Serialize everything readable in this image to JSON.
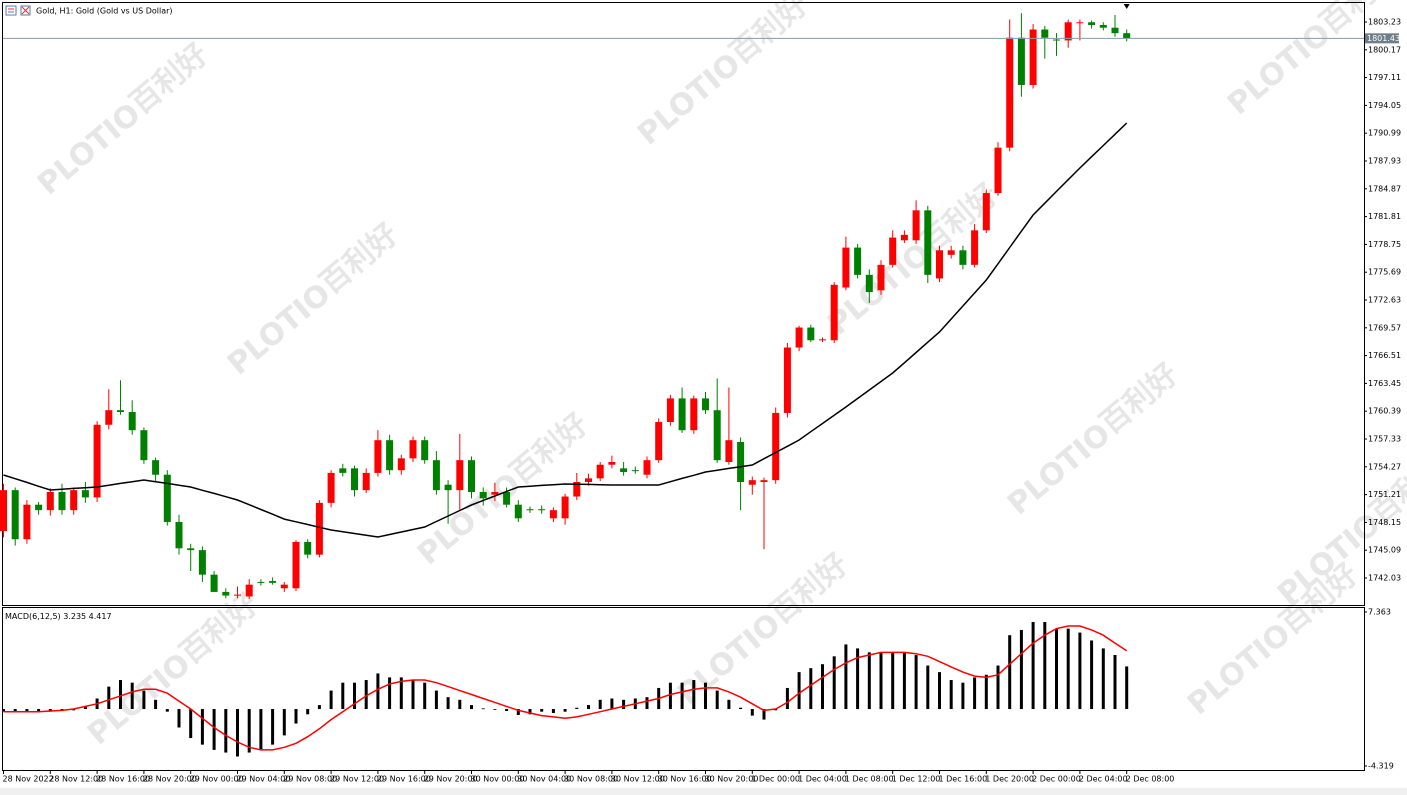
{
  "chart_data": [
    {
      "type": "candlestick",
      "title": "Gold, H1:  Gold (Gold vs US Dollar)",
      "watermark": [
        "PLOTIO",
        "百利好"
      ],
      "up_color": "#ff0000",
      "down_color": "#008000",
      "categories": [
        "28 Nov 2022",
        null,
        null,
        null,
        "28 Nov 12:00",
        null,
        null,
        null,
        "28 Nov 16:00",
        null,
        null,
        null,
        "28 Nov 20:00",
        null,
        null,
        null,
        "29 Nov 00:00",
        null,
        null,
        null,
        "29 Nov 04:00",
        null,
        null,
        null,
        "29 Nov 08:00",
        null,
        null,
        null,
        "29 Nov 12:00",
        null,
        null,
        null,
        "29 Nov 16:00",
        null,
        null,
        null,
        "29 Nov 20:00",
        null,
        null,
        null,
        "30 Nov 00:00",
        null,
        null,
        null,
        "30 Nov 04:00",
        null,
        null,
        null,
        "30 Nov 08:00",
        null,
        null,
        null,
        "30 Nov 12:00",
        null,
        null,
        null,
        "30 Nov 16:00",
        null,
        null,
        null,
        "30 Nov 20:00",
        null,
        null,
        null,
        "1 Dec 00:00",
        null,
        null,
        null,
        "1 Dec 04:00",
        null,
        null,
        null,
        "1 Dec 08:00",
        null,
        null,
        null,
        "1 Dec 12:00",
        null,
        null,
        null,
        "1 Dec 16:00",
        null,
        null,
        null,
        "1 Dec 20:00",
        null,
        null,
        null,
        "2 Dec 00:00",
        null,
        null,
        null,
        "2 Dec 04:00",
        null,
        null,
        null,
        "2 Dec 08:00"
      ],
      "open": [
        1747.2,
        1751.7,
        1746.3,
        1750.1,
        1749.5,
        1751.5,
        1749.5,
        1751.7,
        1750.9,
        1758.9,
        1760.5,
        1760.3,
        1758.3,
        1755.0,
        1753.4,
        1748.2,
        1745.3,
        1745.1,
        1742.4,
        1740.5,
        1740.1,
        1740.0,
        1741.6,
        1741.7,
        1740.9,
        1740.9,
        1746.0,
        1744.6,
        1750.3,
        1754.1,
        1754.1,
        1751.7,
        1753.6,
        1757.2,
        1753.9,
        1755.2,
        1757.2,
        1755.0,
        1752.3,
        1751.7,
        1755.0,
        1751.5,
        1751.2,
        1751.5,
        1750.1,
        1749.6,
        1749.6,
        1748.6,
        1748.6,
        1751.0,
        1752.6,
        1753.0,
        1754.5,
        1754.1,
        1753.9,
        1753.4,
        1755.0,
        1759.2,
        1761.8,
        1758.3,
        1761.8,
        1760.5,
        1754.8,
        1757.0,
        1752.3,
        1752.6,
        1752.8,
        1760.2,
        1767.4,
        1769.6,
        1768.2,
        1768.2,
        1774.0,
        1778.4,
        1775.4,
        1773.7,
        1776.5,
        1779.2,
        1779.2,
        1782.5,
        1775.0,
        1777.6,
        1778.1,
        1776.5,
        1780.3,
        1784.4,
        1789.4,
        1801.5,
        1796.3,
        1802.4,
        1801.3,
        1801.2,
        1803.1,
        1803.2,
        1802.9,
        1802.6,
        1802.0
      ],
      "high": [
        1752.4,
        1752.0,
        1750.6,
        1750.4,
        1751.9,
        1752.4,
        1752.0,
        1752.6,
        1759.3,
        1762.8,
        1763.8,
        1761.6,
        1758.6,
        1755.3,
        1753.9,
        1749.0,
        1745.8,
        1745.5,
        1742.8,
        1740.9,
        1741.1,
        1741.9,
        1741.9,
        1742.1,
        1741.6,
        1746.2,
        1746.3,
        1750.6,
        1753.9,
        1754.6,
        1754.4,
        1754.1,
        1758.3,
        1757.8,
        1755.6,
        1757.6,
        1757.6,
        1756.0,
        1752.8,
        1757.9,
        1755.4,
        1752.0,
        1752.5,
        1752.0,
        1750.6,
        1749.9,
        1750.0,
        1749.8,
        1751.3,
        1753.6,
        1753.5,
        1754.8,
        1755.5,
        1754.8,
        1754.3,
        1755.4,
        1759.6,
        1762.2,
        1763.0,
        1762.1,
        1762.5,
        1764.0,
        1763.0,
        1757.5,
        1753.2,
        1753.1,
        1760.8,
        1767.9,
        1769.8,
        1769.9,
        1768.5,
        1774.6,
        1779.6,
        1778.8,
        1776.0,
        1777.0,
        1780.3,
        1780.3,
        1783.6,
        1783.0,
        1778.6,
        1778.6,
        1778.6,
        1781.0,
        1784.8,
        1790.0,
        1803.5,
        1804.2,
        1803.0,
        1802.8,
        1802.0,
        1803.5,
        1803.5,
        1803.4,
        1803.2,
        1804.0,
        1802.4
      ],
      "low": [
        1746.5,
        1745.6,
        1745.8,
        1749.0,
        1748.9,
        1749.0,
        1749.0,
        1750.3,
        1750.4,
        1758.4,
        1760.0,
        1757.8,
        1754.6,
        1752.6,
        1747.8,
        1744.6,
        1742.8,
        1741.6,
        1740.5,
        1739.8,
        1739.8,
        1739.7,
        1741.2,
        1741.3,
        1740.5,
        1740.6,
        1744.2,
        1744.3,
        1749.8,
        1753.2,
        1751.0,
        1751.4,
        1753.2,
        1753.4,
        1753.4,
        1754.8,
        1754.6,
        1751.2,
        1748.0,
        1749.5,
        1750.8,
        1750.0,
        1750.5,
        1749.8,
        1748.2,
        1749.2,
        1749.1,
        1748.2,
        1747.9,
        1750.6,
        1752.2,
        1752.7,
        1754.1,
        1753.3,
        1753.5,
        1753.0,
        1754.7,
        1758.8,
        1758.0,
        1757.9,
        1760.1,
        1754.7,
        1754.5,
        1749.5,
        1751.2,
        1745.2,
        1752.4,
        1759.7,
        1767.0,
        1768.0,
        1768.0,
        1767.9,
        1773.7,
        1775.0,
        1772.3,
        1773.2,
        1776.2,
        1778.9,
        1778.8,
        1774.5,
        1774.6,
        1777.2,
        1776.0,
        1776.2,
        1780.0,
        1784.1,
        1789.0,
        1795.0,
        1795.9,
        1799.2,
        1799.5,
        1800.4,
        1801.2,
        1802.5,
        1802.3,
        1801.6,
        1801.1
      ],
      "close": [
        1751.7,
        1746.3,
        1750.1,
        1749.5,
        1751.5,
        1749.5,
        1751.7,
        1750.9,
        1758.9,
        1760.5,
        1760.3,
        1758.3,
        1755.0,
        1753.4,
        1748.2,
        1745.3,
        1745.1,
        1742.4,
        1740.5,
        1740.1,
        1740.2,
        1741.3,
        1741.5,
        1741.5,
        1741.3,
        1746.0,
        1744.6,
        1750.3,
        1753.6,
        1753.6,
        1751.7,
        1753.6,
        1757.2,
        1753.9,
        1755.2,
        1757.2,
        1755.0,
        1751.7,
        1751.7,
        1755.0,
        1751.5,
        1750.8,
        1751.5,
        1750.1,
        1748.6,
        1749.5,
        1749.5,
        1749.5,
        1751.0,
        1752.6,
        1753.0,
        1754.5,
        1754.8,
        1753.7,
        1753.8,
        1755.0,
        1759.2,
        1761.8,
        1758.3,
        1761.8,
        1760.5,
        1755.0,
        1757.2,
        1752.6,
        1752.8,
        1752.8,
        1760.2,
        1767.4,
        1769.6,
        1768.2,
        1768.3,
        1774.3,
        1778.4,
        1775.4,
        1773.5,
        1776.5,
        1779.5,
        1779.8,
        1782.5,
        1775.4,
        1778.1,
        1778.1,
        1776.5,
        1780.3,
        1784.4,
        1789.4,
        1801.5,
        1796.3,
        1802.4,
        1801.5,
        1801.2,
        1803.2,
        1803.2,
        1802.9,
        1802.6,
        1802.0,
        1801.43
      ],
      "ma": {
        "color": "#000000",
        "values": [
          1753.37,
          1752.96,
          1752.55,
          1752.13,
          1751.72,
          1751.8,
          1751.89,
          1751.97,
          1752.05,
          1752.24,
          1752.44,
          1752.63,
          1752.82,
          1752.63,
          1752.44,
          1752.24,
          1752.05,
          1751.69,
          1751.34,
          1750.98,
          1750.62,
          1750.1,
          1749.57,
          1749.05,
          1748.52,
          1748.22,
          1747.92,
          1747.61,
          1747.31,
          1747.12,
          1746.93,
          1746.73,
          1746.54,
          1746.82,
          1747.09,
          1747.37,
          1747.64,
          1748.25,
          1748.86,
          1749.46,
          1750.07,
          1750.57,
          1751.06,
          1751.56,
          1752.05,
          1752.13,
          1752.22,
          1752.3,
          1752.38,
          1752.35,
          1752.33,
          1752.3,
          1752.27,
          1752.27,
          1752.27,
          1752.27,
          1752.27,
          1752.63,
          1752.99,
          1753.34,
          1753.7,
          1753.89,
          1754.09,
          1754.28,
          1754.47,
          1755.16,
          1755.85,
          1756.53,
          1757.22,
          1758.13,
          1759.04,
          1759.94,
          1760.85,
          1761.79,
          1762.72,
          1763.66,
          1764.59,
          1765.72,
          1766.85,
          1767.98,
          1769.11,
          1770.54,
          1771.97,
          1773.4,
          1774.83,
          1776.62,
          1778.41,
          1780.2,
          1781.99,
          1783.28,
          1784.58,
          1785.87,
          1787.16,
          1788.4,
          1789.64,
          1790.87,
          1792.11
        ]
      },
      "last_price": 1801.43,
      "ylim": [
        1738.95,
        1805.32
      ],
      "yticks": [
        1803.23,
        1800.17,
        1797.11,
        1794.05,
        1790.99,
        1787.93,
        1784.87,
        1781.81,
        1778.75,
        1775.69,
        1772.63,
        1769.57,
        1766.51,
        1763.45,
        1760.39,
        1757.33,
        1754.27,
        1751.21,
        1748.15,
        1745.09,
        1742.03
      ],
      "grid": false
    },
    {
      "type": "macd",
      "title": "MACD(6,12,5)",
      "histogram": {
        "color": "#000000",
        "values": [
          -0.2,
          -0.2,
          -0.2,
          -0.2,
          -0.2,
          -0.1,
          -0.1,
          0.2,
          0.8,
          1.7,
          2.2,
          2.0,
          1.4,
          0.7,
          -0.2,
          -1.4,
          -2.2,
          -2.7,
          -3.1,
          -3.3,
          -3.6,
          -3.3,
          -3.1,
          -2.7,
          -2.0,
          -1.1,
          -0.4,
          0.3,
          1.4,
          2.0,
          2.0,
          2.2,
          2.7,
          2.4,
          2.4,
          2.2,
          2.0,
          1.4,
          0.9,
          0.7,
          0.3,
          0.05,
          -0.05,
          -0.15,
          -0.45,
          -0.4,
          -0.2,
          -0.3,
          -0.2,
          0.1,
          0.3,
          0.7,
          0.8,
          0.7,
          0.8,
          0.9,
          1.6,
          2.0,
          2.0,
          2.2,
          2.0,
          1.4,
          0.7,
          0.1,
          -0.5,
          -0.8,
          -0.1,
          1.6,
          2.8,
          3.1,
          3.4,
          4.0,
          4.9,
          4.6,
          4.3,
          4.3,
          4.3,
          4.3,
          4.1,
          3.3,
          2.8,
          2.2,
          2.0,
          2.4,
          2.6,
          3.3,
          5.6,
          6.0,
          6.6,
          6.6,
          6.1,
          6.1,
          5.8,
          5.2,
          4.6,
          4.1,
          3.235
        ]
      },
      "signal": {
        "color": "#ff0000",
        "values": [
          -0.2,
          -0.2,
          -0.2,
          -0.2,
          -0.15,
          -0.1,
          0.0,
          0.2,
          0.4,
          0.7,
          1.0,
          1.3,
          1.5,
          1.5,
          1.2,
          0.6,
          0.0,
          -0.7,
          -1.4,
          -2.0,
          -2.5,
          -2.9,
          -3.1,
          -3.1,
          -2.9,
          -2.6,
          -2.1,
          -1.5,
          -0.8,
          -0.2,
          0.4,
          1.0,
          1.5,
          1.9,
          2.1,
          2.2,
          2.2,
          2.0,
          1.7,
          1.4,
          1.1,
          0.8,
          0.5,
          0.2,
          -0.1,
          -0.3,
          -0.5,
          -0.6,
          -0.7,
          -0.6,
          -0.4,
          -0.2,
          0.0,
          0.2,
          0.4,
          0.6,
          0.8,
          1.1,
          1.3,
          1.5,
          1.6,
          1.6,
          1.3,
          0.9,
          0.4,
          -0.1,
          0.0,
          0.5,
          1.2,
          1.8,
          2.4,
          3.0,
          3.5,
          3.9,
          4.1,
          4.3,
          4.3,
          4.3,
          4.2,
          4.0,
          3.6,
          3.2,
          2.8,
          2.5,
          2.4,
          2.6,
          3.4,
          4.2,
          5.0,
          5.6,
          6.1,
          6.3,
          6.3,
          6.0,
          5.6,
          5.0,
          4.417
        ]
      },
      "ylim": [
        -4.7,
        7.74
      ],
      "yticks": [
        7.363,
        -4.319
      ]
    }
  ]
}
